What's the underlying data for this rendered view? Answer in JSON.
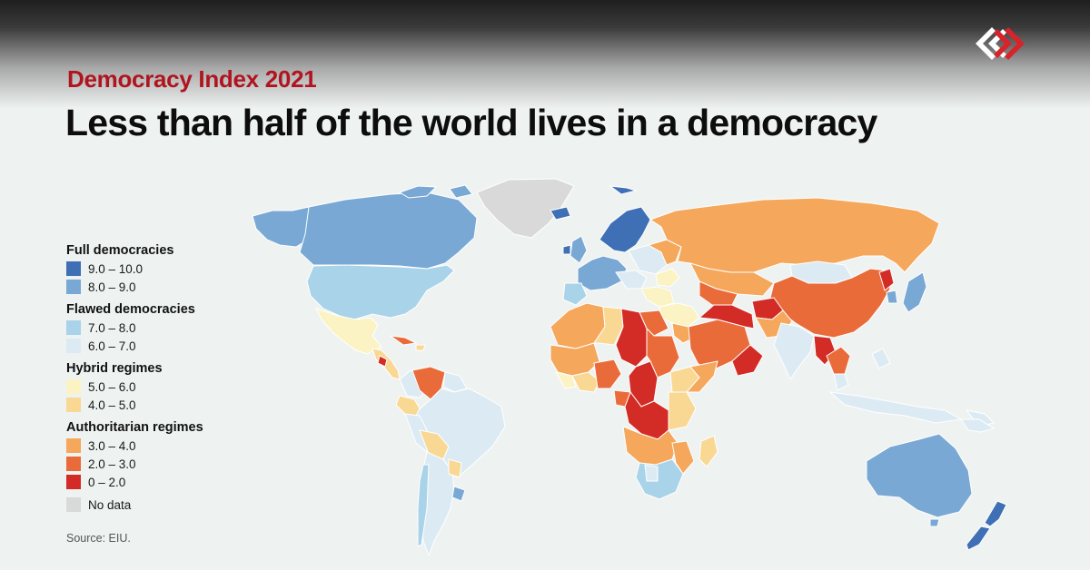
{
  "header": {
    "subtitle": "Democracy Index 2021",
    "title": "Less than half of the world lives in a democracy",
    "subtitle_color": "#b0151f",
    "title_color": "#0d0d0d"
  },
  "logo": {
    "icon": "interlocked-diamonds-logo",
    "colors": [
      "#ffffff",
      "#d8232a"
    ]
  },
  "legend": {
    "groups": [
      {
        "title": "Full democracies",
        "items": [
          {
            "label": "9.0 – 10.0",
            "color": "#3f6fb4"
          },
          {
            "label": "8.0 – 9.0",
            "color": "#79a8d5"
          }
        ]
      },
      {
        "title": "Flawed democracies",
        "items": [
          {
            "label": "7.0 – 8.0",
            "color": "#a9d3e8"
          },
          {
            "label": "6.0 – 7.0",
            "color": "#dcebf3"
          }
        ]
      },
      {
        "title": "Hybrid regimes",
        "items": [
          {
            "label": "5.0 – 6.0",
            "color": "#fbf3c3"
          },
          {
            "label": "4.0 – 5.0",
            "color": "#f9d894"
          }
        ]
      },
      {
        "title": "Authoritarian regimes",
        "items": [
          {
            "label": "3.0 – 4.0",
            "color": "#f5a75c"
          },
          {
            "label": "2.0 – 3.0",
            "color": "#ea6b3a"
          },
          {
            "label": "0 – 2.0",
            "color": "#d32c26"
          }
        ]
      }
    ],
    "no_data": {
      "label": "No data",
      "color": "#d9d9d9"
    }
  },
  "source": "Source: EIU."
}
